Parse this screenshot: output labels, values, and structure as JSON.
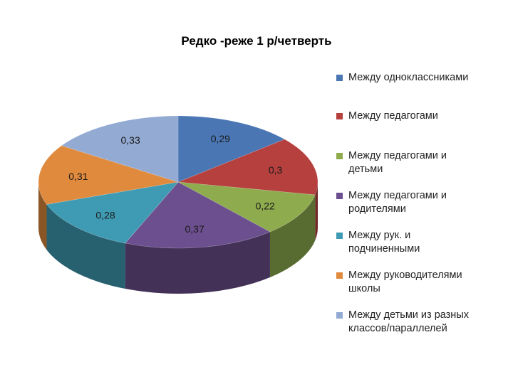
{
  "chart_data": {
    "type": "pie",
    "title": "Редко -реже 1 р/четверть",
    "categories": [
      "Между одноклассниками",
      "Между педагогами",
      "Между педагогами и детьми",
      "Между педагогами и родителями",
      "Между рук. и подчиненными",
      "Между руководителями школы",
      "Между детьми из разных классов/параллелей"
    ],
    "values": [
      0.29,
      0.3,
      0.22,
      0.37,
      0.28,
      0.31,
      0.33
    ],
    "labels": [
      "0,29",
      "0,3",
      "0,22",
      "0,37",
      "0,28",
      "0,31",
      "0,33"
    ],
    "colors": [
      "#4a77b4",
      "#b5403e",
      "#8eac4e",
      "#6c4f8e",
      "#3f9bb3",
      "#e08a3e",
      "#93aad3"
    ],
    "legend_position": "right",
    "style": "3d"
  },
  "legend_lines": [
    [
      "Между одноклассниками"
    ],
    [
      "Между педагогами"
    ],
    [
      "Между педагогами и",
      "детьми"
    ],
    [
      "Между педагогами и",
      "родителями"
    ],
    [
      "Между рук. и",
      "подчиненными"
    ],
    [
      "Между руководителями",
      "школы"
    ],
    [
      "Между детьми из разных",
      "классов/параллелей"
    ]
  ]
}
